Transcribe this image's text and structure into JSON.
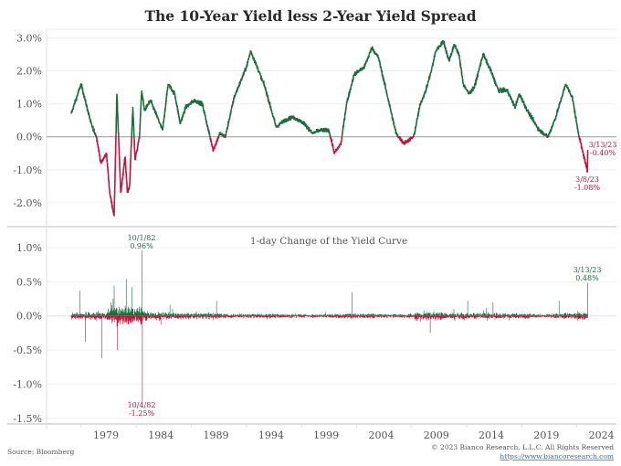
{
  "chart_data": [
    {
      "type": "line",
      "title": "The 10-Year Yield less 2-Year Yield Spread",
      "ylabel": "",
      "xlabel": "",
      "ylim": [
        -2.5,
        3.1
      ],
      "yticks": [
        3.0,
        2.0,
        1.0,
        0.0,
        -1.0,
        -2.0
      ],
      "ytick_labels": [
        "3.0%",
        "2.0%",
        "1.0%",
        "0.0%",
        "-1.0%",
        "-2.0%"
      ],
      "colors": {
        "positive": "#1e6b3c",
        "negative": "#c0143c"
      },
      "series": [
        {
          "name": "10Y-2Y spread (%)",
          "points": [
            [
              1976.3,
              0.7
            ],
            [
              1977.2,
              1.6
            ],
            [
              1978.1,
              0.4
            ],
            [
              1978.6,
              0.0
            ],
            [
              1979.0,
              -0.8
            ],
            [
              1979.5,
              -0.5
            ],
            [
              1979.8,
              -1.7
            ],
            [
              1980.2,
              -2.4
            ],
            [
              1980.45,
              1.3
            ],
            [
              1980.8,
              -1.7
            ],
            [
              1981.2,
              -0.6
            ],
            [
              1981.4,
              -1.7
            ],
            [
              1981.6,
              -1.5
            ],
            [
              1981.9,
              0.9
            ],
            [
              1982.1,
              -0.7
            ],
            [
              1982.5,
              0.0
            ],
            [
              1982.7,
              1.4
            ],
            [
              1982.95,
              0.8
            ],
            [
              1983.5,
              1.1
            ],
            [
              1984.6,
              0.2
            ],
            [
              1985.1,
              1.6
            ],
            [
              1985.7,
              1.3
            ],
            [
              1986.2,
              0.4
            ],
            [
              1986.7,
              0.9
            ],
            [
              1987.5,
              1.1
            ],
            [
              1988.2,
              1.0
            ],
            [
              1988.9,
              0.0
            ],
            [
              1989.2,
              -0.4
            ],
            [
              1989.8,
              0.1
            ],
            [
              1990.3,
              0.0
            ],
            [
              1991.1,
              1.2
            ],
            [
              1992.2,
              2.1
            ],
            [
              1992.6,
              2.6
            ],
            [
              1993.2,
              2.1
            ],
            [
              1993.9,
              1.5
            ],
            [
              1994.9,
              0.3
            ],
            [
              1995.7,
              0.5
            ],
            [
              1996.4,
              0.6
            ],
            [
              1997.5,
              0.4
            ],
            [
              1998.2,
              0.1
            ],
            [
              1998.9,
              0.2
            ],
            [
              1999.7,
              0.2
            ],
            [
              2000.2,
              -0.5
            ],
            [
              2000.8,
              -0.2
            ],
            [
              2001.3,
              1.0
            ],
            [
              2002.0,
              1.9
            ],
            [
              2002.9,
              2.1
            ],
            [
              2003.6,
              2.7
            ],
            [
              2004.2,
              2.4
            ],
            [
              2004.9,
              1.4
            ],
            [
              2005.8,
              0.1
            ],
            [
              2006.5,
              -0.2
            ],
            [
              2007.4,
              0.0
            ],
            [
              2008.0,
              1.0
            ],
            [
              2008.5,
              1.4
            ],
            [
              2009.0,
              2.0
            ],
            [
              2009.4,
              2.6
            ],
            [
              2010.1,
              2.9
            ],
            [
              2010.6,
              2.3
            ],
            [
              2011.1,
              2.8
            ],
            [
              2011.5,
              2.5
            ],
            [
              2011.9,
              1.6
            ],
            [
              2012.4,
              1.3
            ],
            [
              2012.9,
              1.5
            ],
            [
              2013.7,
              2.5
            ],
            [
              2014.4,
              2.0
            ],
            [
              2015.1,
              1.4
            ],
            [
              2015.9,
              1.4
            ],
            [
              2016.6,
              0.9
            ],
            [
              2017.0,
              1.3
            ],
            [
              2017.7,
              0.8
            ],
            [
              2018.8,
              0.2
            ],
            [
              2019.6,
              0.0
            ],
            [
              2020.3,
              0.6
            ],
            [
              2021.2,
              1.6
            ],
            [
              2021.8,
              1.2
            ],
            [
              2022.3,
              0.2
            ],
            [
              2022.7,
              -0.4
            ],
            [
              2023.0,
              -0.8
            ],
            [
              2023.17,
              -1.08
            ],
            [
              2023.2,
              -0.4
            ]
          ]
        }
      ],
      "annotations": [
        {
          "date": "3/13/23",
          "value": "-0.40%",
          "x": 2023.2,
          "y": -0.4
        },
        {
          "date": "3/8/23",
          "value": "-1.08%",
          "x": 2023.17,
          "y": -1.08
        }
      ]
    },
    {
      "type": "bar",
      "title": "1-day Change of the Yield Curve",
      "ylim": [
        -1.55,
        1.15
      ],
      "yticks": [
        1.0,
        0.5,
        0.0,
        -0.5,
        -1.0,
        -1.5
      ],
      "ytick_labels": [
        "1.0%",
        "0.5%",
        "0.0%",
        "-0.5%",
        "-1.0%",
        "-1.5%"
      ],
      "colors": {
        "positive": "#1e6b3c",
        "negative": "#c0143c"
      },
      "x_range": [
        1976.3,
        2023.2
      ],
      "volatility_regimes": [
        [
          1976.3,
          0.05
        ],
        [
          1979.6,
          0.13
        ],
        [
          1982.9,
          0.06
        ],
        [
          1984.5,
          0.045
        ],
        [
          1987,
          0.04
        ],
        [
          1990,
          0.03
        ],
        [
          1995,
          0.025
        ],
        [
          2000,
          0.035
        ],
        [
          2004,
          0.025
        ],
        [
          2007.5,
          0.06
        ],
        [
          2010,
          0.045
        ],
        [
          2012,
          0.04
        ],
        [
          2015,
          0.035
        ],
        [
          2018,
          0.025
        ],
        [
          2020,
          0.035
        ],
        [
          2022,
          0.05
        ]
      ],
      "notable_spikes": [
        [
          1977.1,
          0.37
        ],
        [
          1977.6,
          -0.38
        ],
        [
          1979.1,
          -0.62
        ],
        [
          1980.2,
          0.44
        ],
        [
          1980.5,
          -0.5
        ],
        [
          1981.3,
          0.54
        ],
        [
          1981.8,
          0.42
        ],
        [
          1982.75,
          0.96
        ],
        [
          1982.76,
          -1.25
        ],
        [
          1989.5,
          0.22
        ],
        [
          2001.8,
          0.35
        ],
        [
          2008.9,
          -0.25
        ],
        [
          2012.3,
          0.22
        ],
        [
          2014.6,
          0.2
        ],
        [
          2020.6,
          0.22
        ],
        [
          2023.2,
          0.48
        ]
      ],
      "annotations": [
        {
          "date": "10/1/82",
          "value": "0.96%",
          "x": 1982.75,
          "y": 0.96
        },
        {
          "date": "10/4/82",
          "value": "-1.25%",
          "x": 1982.76,
          "y": -1.25
        },
        {
          "date": "3/13/23",
          "value": "0.48%",
          "x": 2023.2,
          "y": 0.48
        }
      ]
    }
  ],
  "x_axis": {
    "ticks": [
      1979,
      1984,
      1989,
      1994,
      1999,
      2004,
      2009,
      2014,
      2019,
      2024
    ],
    "tick_labels": [
      "1979",
      "1984",
      "1989",
      "1994",
      "1999",
      "2004",
      "2009",
      "2014",
      "2019",
      "2024"
    ]
  },
  "footer": {
    "source": "Source: Bloomberg",
    "copyright": "© 2023 Bianco Research, L.L.C. All Rights Reserved",
    "link": "https://www.biancoresearch.com"
  }
}
